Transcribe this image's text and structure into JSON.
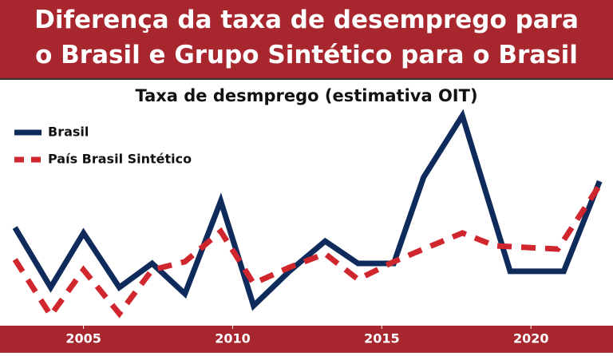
{
  "chart_data": {
    "type": "line",
    "title": "Diferença da taxa de desemprego para o Brasil e Grupo Sintético para o Brasil",
    "subtitle": "Taxa de desmprego (estimativa OIT)",
    "xlim": [
      2002.2,
      2022.75
    ],
    "xticks": [
      2005,
      2010,
      2015,
      2020
    ],
    "ylim": [
      0,
      100
    ],
    "legend": "upper-left",
    "series": [
      {
        "name": "Brasil",
        "color": "#0f2b5b",
        "dash": false,
        "x": [
          2002.7,
          2003.9,
          2005.0,
          2006.2,
          2007.3,
          2008.4,
          2009.6,
          2010.7,
          2011.9,
          2013.1,
          2014.2,
          2015.4,
          2016.4,
          2017.7,
          2019.3,
          2021.1,
          2022.3
        ],
        "values": [
          40.3,
          16.1,
          38.1,
          16.1,
          25.8,
          13.5,
          51.0,
          8.7,
          22.6,
          34.8,
          25.8,
          25.8,
          60.6,
          85.5,
          22.6,
          22.6,
          59.0
        ]
      },
      {
        "name": "País Brasil Sintético",
        "color": "#d0262e",
        "dash": true,
        "x": [
          2002.7,
          2003.9,
          2005.0,
          2006.2,
          2007.3,
          2008.4,
          2009.6,
          2010.7,
          2011.9,
          2013.1,
          2014.2,
          2015.4,
          2016.4,
          2017.7,
          2018.8,
          2020.9,
          2022.3
        ],
        "values": [
          27.4,
          4.8,
          23.2,
          5.5,
          23.2,
          26.5,
          38.7,
          17.7,
          24.2,
          29.7,
          19.4,
          26.5,
          31.6,
          38.1,
          32.9,
          31.6,
          57.4
        ]
      }
    ]
  }
}
